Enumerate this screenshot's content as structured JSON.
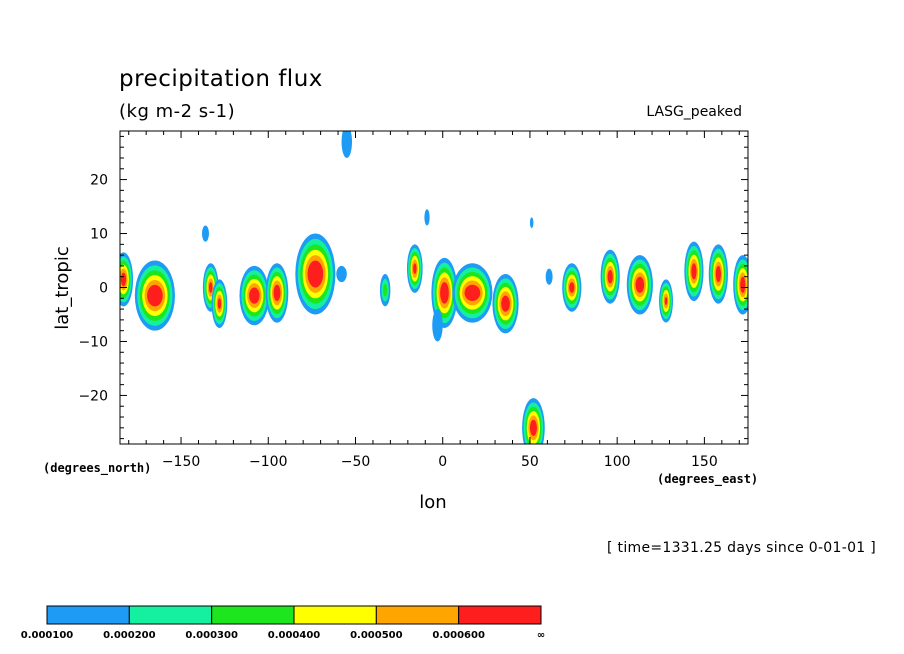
{
  "header": {
    "title": "precipitation flux",
    "units": "(kg m-2 s-1)",
    "dataset": "LASG_peaked",
    "time": "[ time=1331.25 days since 0-01-01 ]"
  },
  "chart_data": {
    "type": "heatmap",
    "subtype": "filled-contour map",
    "xlabel": "lon",
    "ylabel": "lat_tropic",
    "x_units": "(degrees_east)",
    "y_units": "(degrees_north)",
    "xlim": [
      -185,
      175
    ],
    "ylim": [
      -29,
      29
    ],
    "x_ticks": [
      -150,
      -100,
      -50,
      0,
      50,
      100,
      150
    ],
    "y_ticks": [
      -20,
      -10,
      0,
      10,
      20
    ],
    "x_tick_labels": [
      "−150",
      "−100",
      "−50",
      "0",
      "50",
      "100",
      "150"
    ],
    "y_tick_labels": [
      "−20",
      "−10",
      "0",
      "10",
      "20"
    ],
    "x_minor_step": 10,
    "y_minor_step": 2,
    "grid": false,
    "colorbar": {
      "placement": "bottom",
      "levels": [
        "0.000100",
        "0.000200",
        "0.000300",
        "0.000400",
        "0.000500",
        "0.000600",
        "∞"
      ],
      "colors": [
        "#1e9bf5",
        "#14f0a0",
        "#1ee61e",
        "#ffff00",
        "#ffa500",
        "#ff1e1e"
      ]
    },
    "features": [
      {
        "lon": -183,
        "lat": 1.5,
        "rx": 3,
        "ry": 2.5,
        "level": 6
      },
      {
        "lon": -165,
        "lat": -1.5,
        "rx": 9,
        "ry": 4,
        "level": 6
      },
      {
        "lon": -136,
        "lat": 10,
        "rx": 2,
        "ry": 1.5,
        "level": 1
      },
      {
        "lon": -133,
        "lat": 0,
        "rx": 2,
        "ry": 2,
        "level": 6
      },
      {
        "lon": -128,
        "lat": -3,
        "rx": 2,
        "ry": 2,
        "level": 6
      },
      {
        "lon": -108,
        "lat": -1.5,
        "rx": 6,
        "ry": 3,
        "level": 6
      },
      {
        "lon": -95,
        "lat": -1,
        "rx": 4,
        "ry": 3,
        "level": 6
      },
      {
        "lon": -73,
        "lat": 2.5,
        "rx": 9,
        "ry": 5,
        "level": 6
      },
      {
        "lon": -58,
        "lat": 2.5,
        "rx": 3,
        "ry": 1.5,
        "level": 1
      },
      {
        "lon": -55,
        "lat": 27,
        "rx": 3,
        "ry": 3,
        "level": 1
      },
      {
        "lon": -33,
        "lat": -0.5,
        "rx": 2,
        "ry": 2,
        "level": 3
      },
      {
        "lon": -16,
        "lat": 3.5,
        "rx": 2,
        "ry": 2,
        "level": 6
      },
      {
        "lon": -9,
        "lat": 13,
        "rx": 1.5,
        "ry": 1.5,
        "level": 1
      },
      {
        "lon": 1,
        "lat": -1,
        "rx": 5,
        "ry": 4,
        "level": 6
      },
      {
        "lon": -3,
        "lat": -7,
        "rx": 3,
        "ry": 3,
        "level": 1
      },
      {
        "lon": 17,
        "lat": -1,
        "rx": 9,
        "ry": 3,
        "level": 6
      },
      {
        "lon": 36,
        "lat": -3,
        "rx": 5,
        "ry": 3,
        "level": 6
      },
      {
        "lon": 51,
        "lat": 12,
        "rx": 1,
        "ry": 1,
        "level": 1
      },
      {
        "lon": 52,
        "lat": -26,
        "rx": 4,
        "ry": 3,
        "level": 6
      },
      {
        "lon": 61,
        "lat": 2,
        "rx": 2,
        "ry": 1.5,
        "level": 1
      },
      {
        "lon": 74,
        "lat": 0,
        "rx": 3,
        "ry": 2,
        "level": 6
      },
      {
        "lon": 96,
        "lat": 2,
        "rx": 3,
        "ry": 2.5,
        "level": 6
      },
      {
        "lon": 113,
        "lat": 0.5,
        "rx": 5,
        "ry": 3,
        "level": 6
      },
      {
        "lon": 128,
        "lat": -2.5,
        "rx": 1.5,
        "ry": 1.5,
        "level": 6
      },
      {
        "lon": 144,
        "lat": 3,
        "rx": 3,
        "ry": 3,
        "level": 6
      },
      {
        "lon": 158,
        "lat": 2.5,
        "rx": 3,
        "ry": 3,
        "level": 6
      },
      {
        "lon": 172,
        "lat": 0.5,
        "rx": 3,
        "ry": 3,
        "level": 6
      }
    ]
  }
}
